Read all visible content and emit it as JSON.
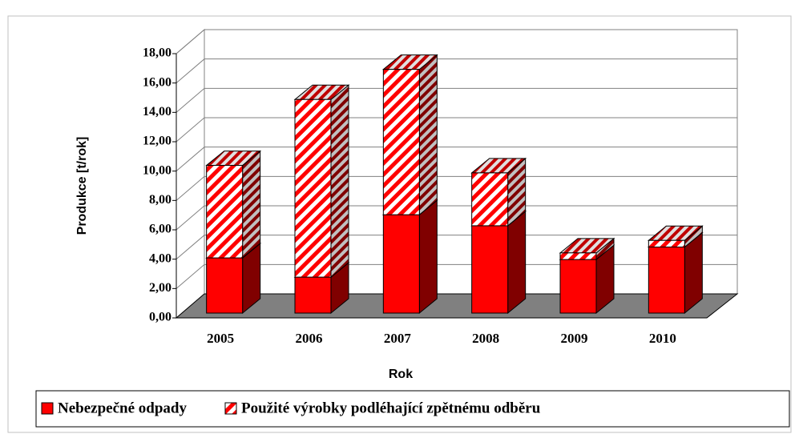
{
  "chart_data": {
    "type": "bar3d_stacked",
    "x_label": "Rok",
    "y_label": "Produkce [t/rok]",
    "categories": [
      "2005",
      "2006",
      "2007",
      "2008",
      "2009",
      "2010"
    ],
    "series": [
      {
        "name": "Nebezpečné odpady",
        "color": "#ff0000",
        "hatch": false,
        "values": [
          3.76,
          2.45,
          6.7,
          5.95,
          3.65,
          4.5
        ]
      },
      {
        "name": "Použité výrobky podléhající zpětnému odběru",
        "color": "#ff0000",
        "hatch": true,
        "values": [
          6.3,
          12.1,
          9.9,
          3.6,
          0.45,
          0.45
        ]
      }
    ],
    "ylim": [
      0,
      18
    ],
    "yticks": [
      {
        "value": 0,
        "label": "0,00"
      },
      {
        "value": 2,
        "label": "2,00"
      },
      {
        "value": 4,
        "label": "4,00"
      },
      {
        "value": 6,
        "label": "6,00"
      },
      {
        "value": 8,
        "label": "8,00"
      },
      {
        "value": 10,
        "label": "10,00"
      },
      {
        "value": 12,
        "label": "12,00"
      },
      {
        "value": 14,
        "label": "14,00"
      },
      {
        "value": 16,
        "label": "16,00"
      },
      {
        "value": 18,
        "label": "18,00"
      }
    ],
    "grid": true,
    "legend": "bottom"
  }
}
